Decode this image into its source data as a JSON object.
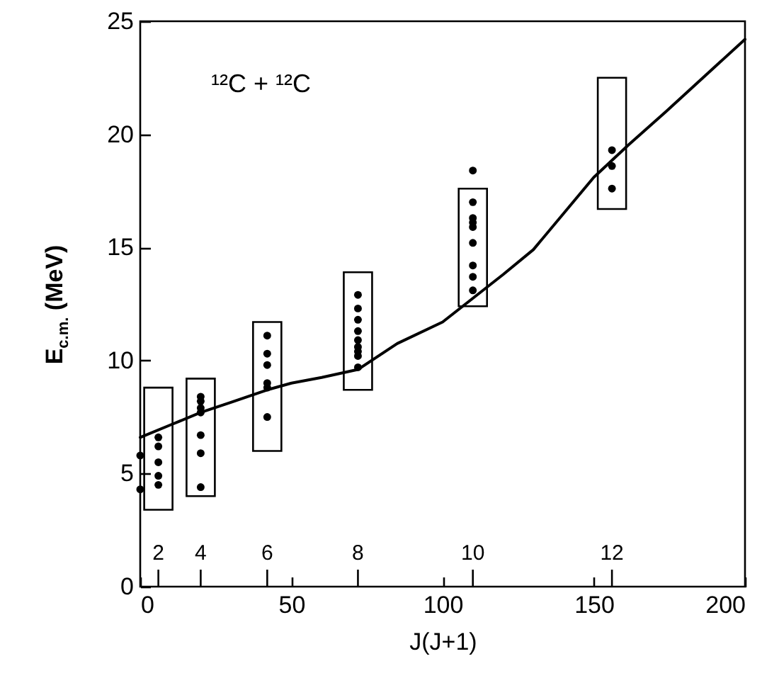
{
  "chart_data": {
    "type": "scatter",
    "xlabel": "J(J+1)",
    "ylabel": "E$_{c.m.}$ (MeV)",
    "xlim": [
      0,
      200
    ],
    "ylim": [
      0,
      25
    ],
    "xticks": [
      0,
      50,
      100,
      150,
      200
    ],
    "yticks": [
      0,
      5,
      10,
      15,
      20,
      25
    ],
    "annotations": [
      "¹²C + ¹²C",
      "2",
      "4",
      "6",
      "8",
      "10",
      "12"
    ],
    "series": [
      {
        "type": "bar",
        "color": "#000000",
        "x": [
          6,
          20,
          42,
          72,
          110,
          156
        ],
        "base": [
          3.4,
          4.0,
          6.0,
          8.7,
          12.4,
          16.7
        ],
        "values": [
          5.4,
          5.2,
          5.7,
          5.2,
          5.2,
          5.8
        ]
      },
      {
        "marker": "circle",
        "color": "#000000",
        "x": [
          0,
          0,
          6,
          6,
          6,
          6,
          6,
          20,
          20,
          20,
          20,
          20,
          20,
          20,
          42,
          42,
          42,
          42,
          42,
          42,
          72,
          72,
          72,
          72,
          72,
          72,
          72,
          72,
          72,
          110,
          110,
          110,
          110,
          110,
          110,
          110,
          110,
          110,
          156,
          156,
          156
        ],
        "values": [
          5.8,
          4.3,
          6.6,
          6.2,
          5.5,
          4.9,
          4.5,
          8.4,
          8.2,
          7.9,
          7.7,
          6.7,
          5.9,
          4.4,
          11.1,
          10.3,
          9.8,
          9.0,
          8.8,
          7.5,
          12.9,
          12.3,
          11.8,
          11.3,
          10.9,
          10.6,
          10.4,
          10.2,
          9.7,
          18.4,
          17.0,
          16.3,
          16.1,
          15.9,
          15.2,
          14.2,
          13.7,
          13.1,
          19.3,
          18.6,
          17.6
        ]
      },
      {
        "type": "line",
        "color": "#000000",
        "x": [
          0,
          10,
          20,
          30,
          42,
          50,
          60,
          72,
          85,
          100,
          110,
          120,
          130,
          150,
          161.6,
          173.8,
          200
        ],
        "values": [
          6.6,
          7.15,
          7.7,
          8.15,
          8.7,
          9.0,
          9.25,
          9.6,
          10.75,
          11.7,
          12.75,
          13.8,
          14.9,
          18.1,
          19.55,
          21.0,
          24.2
        ]
      }
    ]
  }
}
